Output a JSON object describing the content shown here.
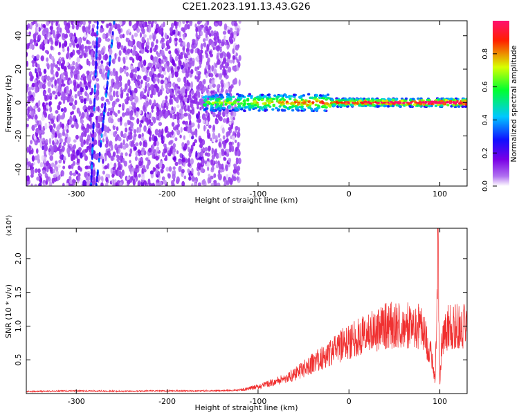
{
  "title": "C2E1.2023.191.13.43.G26",
  "chart_data": [
    {
      "type": "heatmap",
      "xlabel": "Height of straight line (km)",
      "ylabel": "Frequency (Hz)",
      "xlim": [
        -355,
        130
      ],
      "ylim": [
        -50,
        49
      ],
      "x_ticks": [
        -300,
        -200,
        -100,
        0,
        100
      ],
      "y_ticks": [
        -40,
        -20,
        0,
        20,
        40
      ],
      "colorbar": {
        "label": "Normalized spectral amplitude",
        "range": [
          0,
          1
        ],
        "ticks": [
          "0.0",
          "0.2",
          "0.4",
          "0.6",
          "0.8"
        ],
        "colors": [
          "#ffffff",
          "#b070f0",
          "#7a00e6",
          "#1010ff",
          "#00c8ff",
          "#00ff30",
          "#d8ff00",
          "#ff2000",
          "#ff1070"
        ]
      },
      "features": {
        "diffuse_noise_region_x": [
          -355,
          -130
        ],
        "signal_line_freq_hz": 0,
        "signal_line_start_x": -160,
        "streaks_x": [
          -280,
          -268
        ]
      }
    },
    {
      "type": "line",
      "xlabel": "Height of straight line (km)",
      "ylabel": "SNR (10 * v/v)",
      "y_multiplier_label": "(x10⁴)",
      "xlim": [
        -355,
        130
      ],
      "ylim": [
        0,
        2.45
      ],
      "x_ticks": [
        -300,
        -200,
        -100,
        0,
        100
      ],
      "y_ticks": [
        0.5,
        1.0,
        1.5,
        2.0
      ],
      "series": [
        {
          "color": "#f03030",
          "x": [
            -355,
            -300,
            -250,
            -200,
            -150,
            -120,
            -100,
            -80,
            -60,
            -40,
            -20,
            0,
            20,
            40,
            60,
            80,
            90,
            95,
            98,
            100,
            102,
            105,
            110,
            120,
            130
          ],
          "y": [
            0.03,
            0.04,
            0.035,
            0.04,
            0.04,
            0.05,
            0.1,
            0.18,
            0.28,
            0.45,
            0.6,
            0.78,
            0.9,
            1.0,
            1.02,
            0.98,
            0.6,
            0.2,
            2.45,
            0.1,
            0.8,
            0.95,
            0.98,
            1.0,
            0.98
          ]
        }
      ]
    }
  ]
}
